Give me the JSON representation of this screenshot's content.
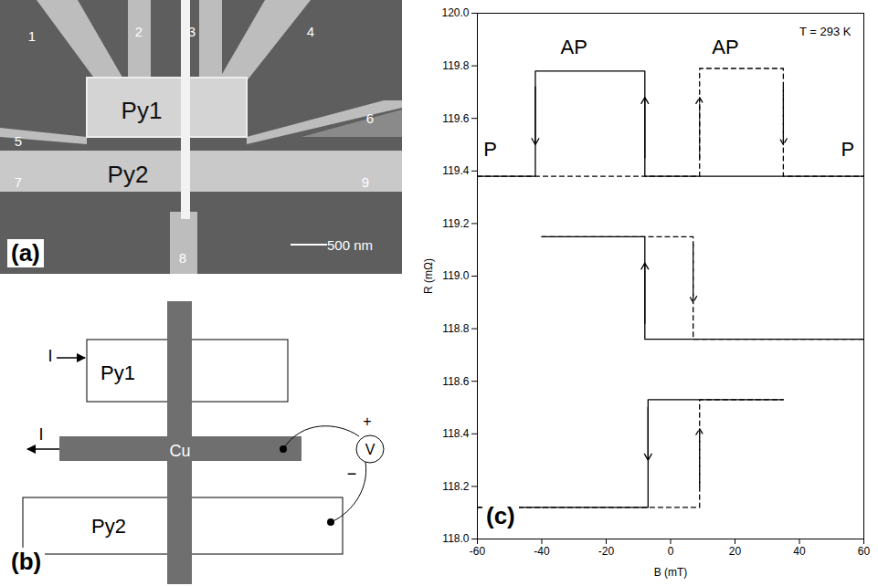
{
  "panel_a": {
    "label": "(a)",
    "electrodes": [
      "1",
      "2",
      "3",
      "4",
      "5",
      "6",
      "7",
      "8",
      "9"
    ],
    "strips": [
      "Py1",
      "Py2"
    ],
    "scale_bar": "500 nm"
  },
  "panel_b": {
    "label": "(b)",
    "strips": [
      "Py1",
      "Cu",
      "Py2"
    ],
    "currents": [
      "I",
      "I"
    ],
    "voltmeter": "V",
    "plus": "+",
    "minus": "−"
  },
  "chart_data": {
    "type": "line",
    "panel_label": "(c)",
    "xlabel": "B (mT)",
    "ylabel": "R (mΩ)",
    "xlim": [
      -60,
      60
    ],
    "xticks": [
      -60,
      -40,
      -20,
      0,
      20,
      40,
      60
    ],
    "ylim": [
      118,
      120
    ],
    "yticks": [
      {
        "value": 118,
        "label": "118.0"
      },
      118.2,
      118.4,
      118.6,
      118.8,
      {
        "value": 119,
        "label": "119.0"
      },
      119.2,
      119.4,
      119.6,
      119.8,
      {
        "value": 120,
        "label": "120.0"
      }
    ],
    "grid": false,
    "series": [
      {
        "color": "#000000",
        "line_style": "solid",
        "x": [
          -60,
          -42,
          -42,
          -8,
          -8,
          60
        ],
        "y": [
          119.38,
          119.38,
          119.78,
          119.78,
          119.38,
          119.38
        ],
        "arrows": [
          {
            "x": -42,
            "from": 119.72,
            "to": 119.5
          },
          {
            "x": -8,
            "from": 119.45,
            "to": 119.68
          }
        ]
      },
      {
        "color": "#000000",
        "line_style": "dashed",
        "x": [
          -60,
          9,
          9,
          35,
          35,
          60
        ],
        "y": [
          119.38,
          119.38,
          119.79,
          119.79,
          119.38,
          119.38
        ],
        "arrows": [
          {
            "x": 9,
            "from": 119.45,
            "to": 119.68
          },
          {
            "x": 35,
            "from": 119.72,
            "to": 119.5
          }
        ]
      },
      {
        "color": "#000000",
        "line_style": "solid",
        "x": [
          -40,
          -8,
          -8,
          60
        ],
        "y": [
          119.15,
          119.15,
          118.76,
          118.76
        ],
        "arrows": [
          {
            "x": -8,
            "from": 118.82,
            "to": 119.05
          }
        ]
      },
      {
        "color": "#000000",
        "line_style": "dashed",
        "x": [
          -40,
          7,
          7,
          60
        ],
        "y": [
          119.15,
          119.15,
          118.76,
          118.76
        ],
        "arrows": [
          {
            "x": 7,
            "from": 119.12,
            "to": 118.9
          }
        ]
      },
      {
        "color": "#000000",
        "line_style": "solid",
        "x": [
          -60,
          -7,
          -7,
          35
        ],
        "y": [
          118.12,
          118.12,
          118.53,
          118.53
        ],
        "arrows": [
          {
            "x": -7,
            "from": 118.5,
            "to": 118.3
          }
        ]
      },
      {
        "color": "#000000",
        "line_style": "dashed",
        "x": [
          -60,
          9,
          9,
          35
        ],
        "y": [
          118.12,
          118.12,
          118.53,
          118.53
        ],
        "arrows": [
          {
            "x": 9,
            "from": 118.2,
            "to": 118.42
          }
        ]
      }
    ],
    "annotations": [
      {
        "text": "AP",
        "x": -30,
        "y": 119.87
      },
      {
        "text": "AP",
        "x": 17,
        "y": 119.87
      },
      {
        "text": "P",
        "x": -56,
        "y": 119.48
      },
      {
        "text": "P",
        "x": 55,
        "y": 119.48
      },
      {
        "text": "T = 293 K",
        "x": 48,
        "y": 119.93
      }
    ]
  }
}
